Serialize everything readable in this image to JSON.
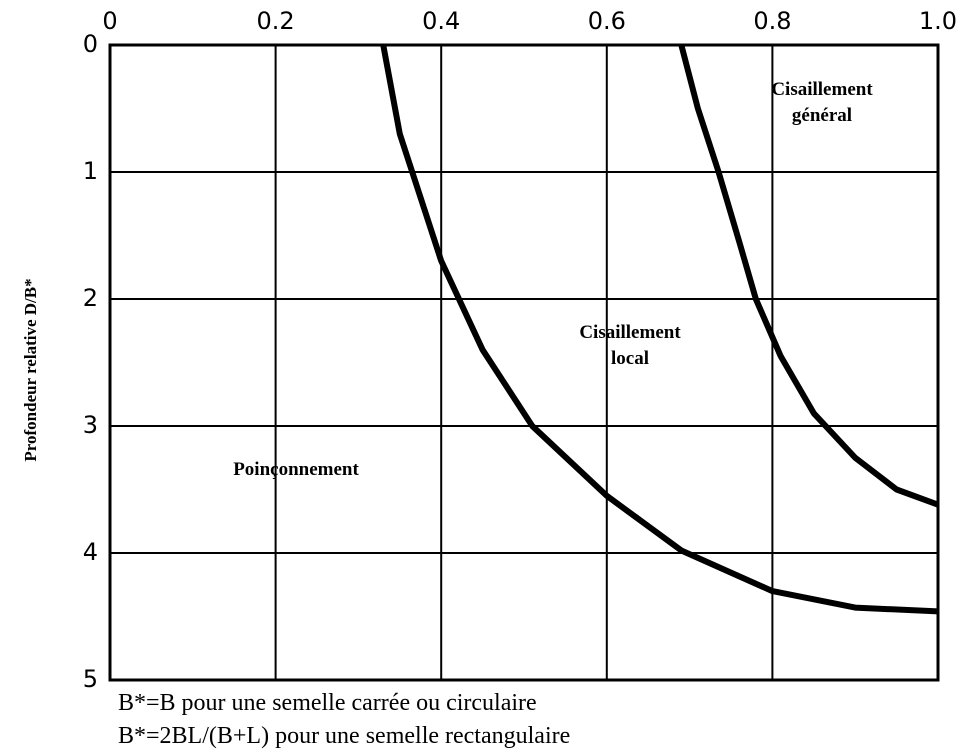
{
  "chart_data": {
    "type": "line",
    "ylabel": "Profondeur relative D/B*",
    "xlim": [
      0,
      1
    ],
    "xticks": [
      0,
      0.2,
      0.4,
      0.6,
      0.8,
      {
        "value": 1,
        "label": "1.0"
      }
    ],
    "ylim": [
      0,
      5
    ],
    "yticks": [
      0,
      1,
      2,
      3,
      4,
      5
    ],
    "y_inverted": true,
    "grid": true,
    "series": [
      {
        "color": "#000000",
        "x": [
          0.33,
          0.35,
          0.38,
          0.4,
          0.45,
          0.51,
          0.6,
          0.69,
          0.8,
          0.9,
          1.0
        ],
        "values": [
          0,
          0.7,
          1.3,
          1.7,
          2.4,
          3.0,
          3.55,
          3.98,
          4.3,
          4.43,
          4.46
        ]
      },
      {
        "color": "#000000",
        "x": [
          0.69,
          0.71,
          0.735,
          0.76,
          0.78,
          0.81,
          0.85,
          0.9,
          0.95,
          1.0
        ],
        "values": [
          0,
          0.5,
          1.0,
          1.55,
          2.0,
          2.45,
          2.9,
          3.25,
          3.5,
          3.62
        ]
      }
    ],
    "annotations": [
      {
        "lines": [
          "Cisaillement",
          "général"
        ]
      },
      {
        "lines": [
          "Cisaillement",
          "local"
        ]
      },
      {
        "lines": [
          "Poinçonnement"
        ]
      }
    ],
    "notes": [
      "B*=B pour une semelle carrée ou circulaire",
      "B*=2BL/(B+L) pour une semelle rectangulaire"
    ]
  }
}
